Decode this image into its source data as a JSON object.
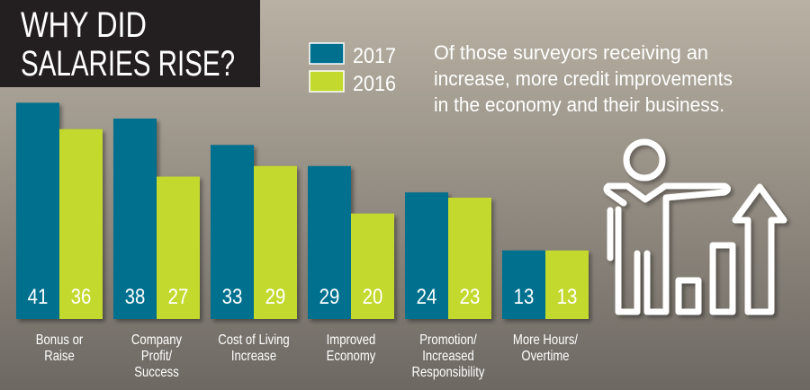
{
  "title_lines": [
    "WHY DID",
    "SALARIES RISE?"
  ],
  "description_lines": [
    "Of those surveyors receiving an",
    "increase, more credit improvements",
    "in the economy and their business."
  ],
  "icon": "person-presenting-rising-bar-chart-icon",
  "colors": {
    "series_2017": "#00708f",
    "series_2016": "#c3d92e",
    "title_bg": "#231f20",
    "bg_top": "#b9b1a3",
    "bg_bottom": "#6d6862"
  },
  "chart_data": {
    "type": "bar",
    "title": "WHY DID SALARIES RISE?",
    "categories": [
      [
        "Bonus or",
        "Raise"
      ],
      [
        "Company",
        "Profit/",
        "Success"
      ],
      [
        "Cost of Living",
        "Increase"
      ],
      [
        "Improved",
        "Economy"
      ],
      [
        "Promotion/",
        "Increased",
        "Responsibility"
      ],
      [
        "More Hours/",
        "Overtime"
      ]
    ],
    "series": [
      {
        "name": "2017",
        "values": [
          41,
          38,
          33,
          29,
          24,
          13
        ]
      },
      {
        "name": "2016",
        "values": [
          36,
          27,
          29,
          20,
          23,
          13
        ]
      }
    ],
    "ylim": [
      0,
      45
    ],
    "grid": false,
    "legend": "top-center"
  }
}
